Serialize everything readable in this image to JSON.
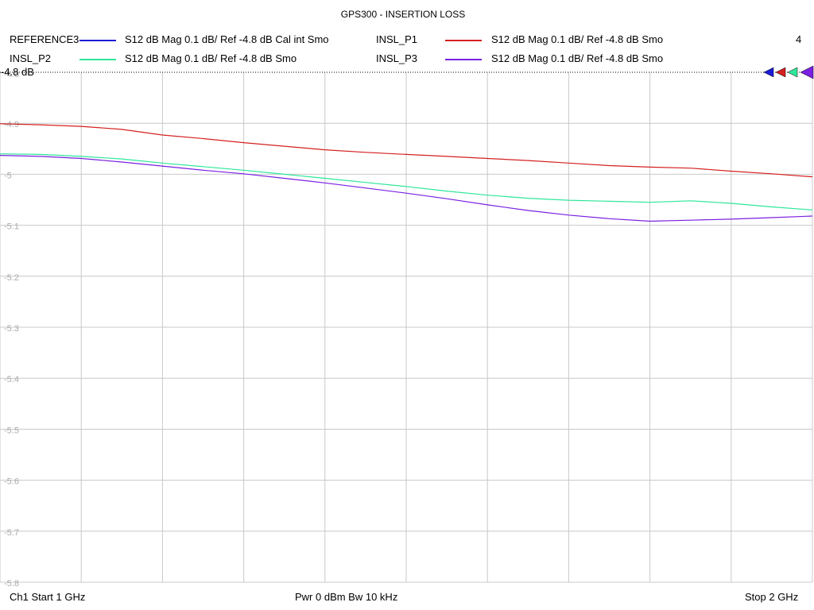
{
  "window": {
    "title": "GPS300 - INSERTION LOSS"
  },
  "channel_number": "4",
  "ref_label": "-4.8 dB",
  "legend": [
    {
      "name": "REFERENCE3",
      "desc": "S12  dB Mag  0.1 dB/ Ref -4.8 dB  Cal int Smo",
      "color": "#1c1cd6"
    },
    {
      "name": "INSL_P1",
      "desc": "S12  dB Mag  0.1 dB/ Ref -4.8 dB  Smo",
      "color": "#d42020"
    },
    {
      "name": "INSL_P2",
      "desc": "S12  dB Mag  0.1 dB/ Ref -4.8 dB  Smo",
      "color": "#2ee69a"
    },
    {
      "name": "INSL_P3",
      "desc": "S12  dB Mag  0.1 dB/ Ref -4.8 dB  Smo",
      "color": "#7a20e0"
    }
  ],
  "footer": {
    "start": "Ch1  Start  1 GHz",
    "power": "Pwr  0 dBm  Bw  10 kHz",
    "stop": "Stop  2 GHz"
  },
  "chart_data": {
    "type": "line",
    "title": "GPS300 - INSERTION LOSS",
    "xlim": [
      1.0,
      2.0
    ],
    "ylim": [
      -5.8,
      -4.8
    ],
    "yticks": [
      "-4.8",
      "-4.9",
      "-5",
      "-5.1",
      "-5.2",
      "-5.3",
      "-5.4",
      "-5.5",
      "-5.6",
      "-5.7",
      "-5.8"
    ],
    "grid": true,
    "x": [
      1.0,
      1.05,
      1.1,
      1.15,
      1.2,
      1.25,
      1.3,
      1.35,
      1.4,
      1.45,
      1.5,
      1.55,
      1.6,
      1.65,
      1.7,
      1.75,
      1.8,
      1.85,
      1.9,
      1.95,
      2.0
    ],
    "series": [
      {
        "name": "INSL_P1",
        "color": "#d42020",
        "values": [
          -4.901,
          -4.903,
          -4.906,
          -4.912,
          -4.923,
          -4.93,
          -4.938,
          -4.945,
          -4.952,
          -4.957,
          -4.961,
          -4.965,
          -4.969,
          -4.973,
          -4.978,
          -4.983,
          -4.986,
          -4.988,
          -4.994,
          -4.999,
          -5.005
        ]
      },
      {
        "name": "INSL_P2",
        "color": "#2ee69a",
        "values": [
          -4.96,
          -4.961,
          -4.965,
          -4.97,
          -4.978,
          -4.985,
          -4.992,
          -5.0,
          -5.008,
          -5.016,
          -5.024,
          -5.033,
          -5.041,
          -5.047,
          -5.051,
          -5.053,
          -5.055,
          -5.052,
          -5.057,
          -5.064,
          -5.07
        ]
      },
      {
        "name": "INSL_P3",
        "color": "#7a20e0",
        "values": [
          -4.963,
          -4.965,
          -4.969,
          -4.976,
          -4.984,
          -4.992,
          -4.999,
          -5.008,
          -5.017,
          -5.027,
          -5.037,
          -5.048,
          -5.06,
          -5.071,
          -5.08,
          -5.087,
          -5.092,
          -5.09,
          -5.088,
          -5.085,
          -5.082
        ]
      }
    ]
  }
}
